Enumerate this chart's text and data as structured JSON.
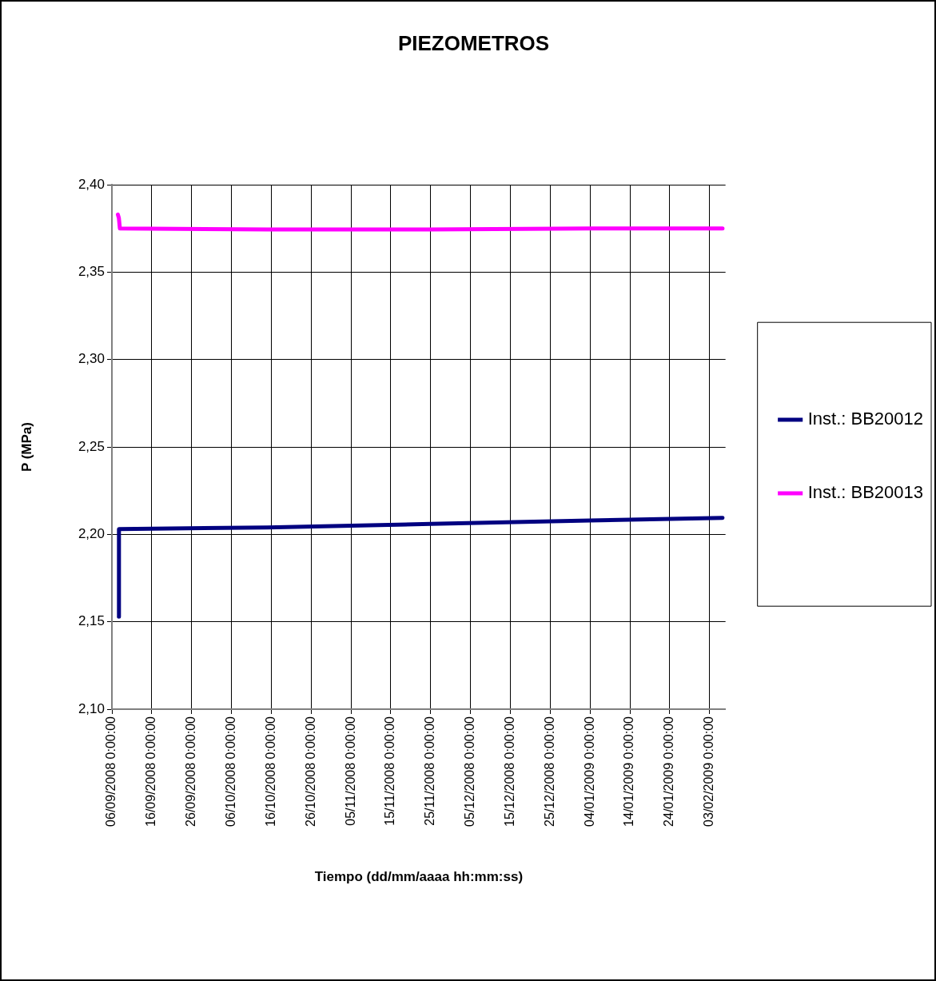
{
  "chart_data": {
    "type": "line",
    "title": "PIEZOMETROS",
    "xlabel": "Tiempo (dd/mm/aaaa hh:mm:ss)",
    "ylabel": "P (MPa)",
    "xlim": [
      "2008-09-06",
      "2009-02-07"
    ],
    "xticks": [
      {
        "value": "2008-09-06",
        "label": "06/09/2008 0:00:00"
      },
      {
        "value": "2008-09-16",
        "label": "16/09/2008 0:00:00"
      },
      {
        "value": "2008-09-26",
        "label": "26/09/2008 0:00:00"
      },
      {
        "value": "2008-10-06",
        "label": "06/10/2008 0:00:00"
      },
      {
        "value": "2008-10-16",
        "label": "16/10/2008 0:00:00"
      },
      {
        "value": "2008-10-26",
        "label": "26/10/2008 0:00:00"
      },
      {
        "value": "2008-11-05",
        "label": "05/11/2008 0:00:00"
      },
      {
        "value": "2008-11-15",
        "label": "15/11/2008 0:00:00"
      },
      {
        "value": "2008-11-25",
        "label": "25/11/2008 0:00:00"
      },
      {
        "value": "2008-12-05",
        "label": "05/12/2008 0:00:00"
      },
      {
        "value": "2008-12-15",
        "label": "15/12/2008 0:00:00"
      },
      {
        "value": "2008-12-25",
        "label": "25/12/2008 0:00:00"
      },
      {
        "value": "2009-01-04",
        "label": "04/01/2009 0:00:00"
      },
      {
        "value": "2009-01-14",
        "label": "14/01/2009 0:00:00"
      },
      {
        "value": "2009-01-24",
        "label": "24/01/2009 0:00:00"
      },
      {
        "value": "2009-02-03",
        "label": "03/02/2009 0:00:00"
      }
    ],
    "ylim": [
      2.1,
      2.4
    ],
    "yticks": [
      {
        "value": 2.1,
        "label": "2,10"
      },
      {
        "value": 2.15,
        "label": "2,15"
      },
      {
        "value": 2.2,
        "label": "2,20"
      },
      {
        "value": 2.25,
        "label": "2,25"
      },
      {
        "value": 2.3,
        "label": "2,30"
      },
      {
        "value": 2.35,
        "label": "2,35"
      },
      {
        "value": 2.4,
        "label": "2,40"
      }
    ],
    "grid": true,
    "legend": "right",
    "marker": "none",
    "line_style": "solid",
    "series": [
      {
        "name": "Inst.: BB20012",
        "color": "#000080",
        "x": [
          "2008-09-07T18:00",
          "2008-09-07T18:30",
          "2008-10-15",
          "2008-11-25",
          "2009-01-04",
          "2009-02-06T06:00"
        ],
        "values": [
          2.153,
          2.203,
          2.204,
          2.206,
          2.208,
          2.2095
        ]
      },
      {
        "name": "Inst.: BB20013",
        "color": "#ff00ff",
        "x": [
          "2008-09-07T12:00",
          "2008-09-07T18:00",
          "2008-09-08T00:00",
          "2008-10-15",
          "2008-11-25",
          "2009-01-04",
          "2009-02-06T06:00"
        ],
        "values": [
          2.383,
          2.381,
          2.375,
          2.3745,
          2.3745,
          2.375,
          2.375
        ]
      }
    ]
  }
}
